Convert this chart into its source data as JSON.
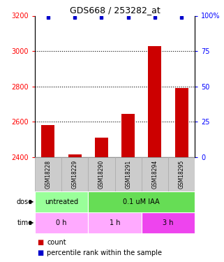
{
  "title": "GDS668 / 253282_at",
  "samples": [
    "GSM18228",
    "GSM18229",
    "GSM18290",
    "GSM18291",
    "GSM18294",
    "GSM18295"
  ],
  "bar_values": [
    2580,
    2415,
    2510,
    2645,
    3030,
    2790
  ],
  "percentile_values": [
    99,
    99,
    99,
    99,
    99,
    99
  ],
  "bar_color": "#cc0000",
  "dot_color": "#0000cc",
  "ylim_left": [
    2400,
    3200
  ],
  "ylim_right": [
    0,
    100
  ],
  "yticks_left": [
    2400,
    2600,
    2800,
    3000,
    3200
  ],
  "yticks_right": [
    0,
    25,
    50,
    75,
    100
  ],
  "dose_color_untreated": "#99ff99",
  "dose_color_treated": "#66dd55",
  "time_color_light": "#ffaaff",
  "time_color_dark": "#ee44ee",
  "row_header_bg": "#cccccc",
  "row_header_edge": "#aaaaaa",
  "legend_count_color": "#cc0000",
  "legend_dot_color": "#0000cc",
  "background_color": "#ffffff",
  "gridline_color": "#000000"
}
